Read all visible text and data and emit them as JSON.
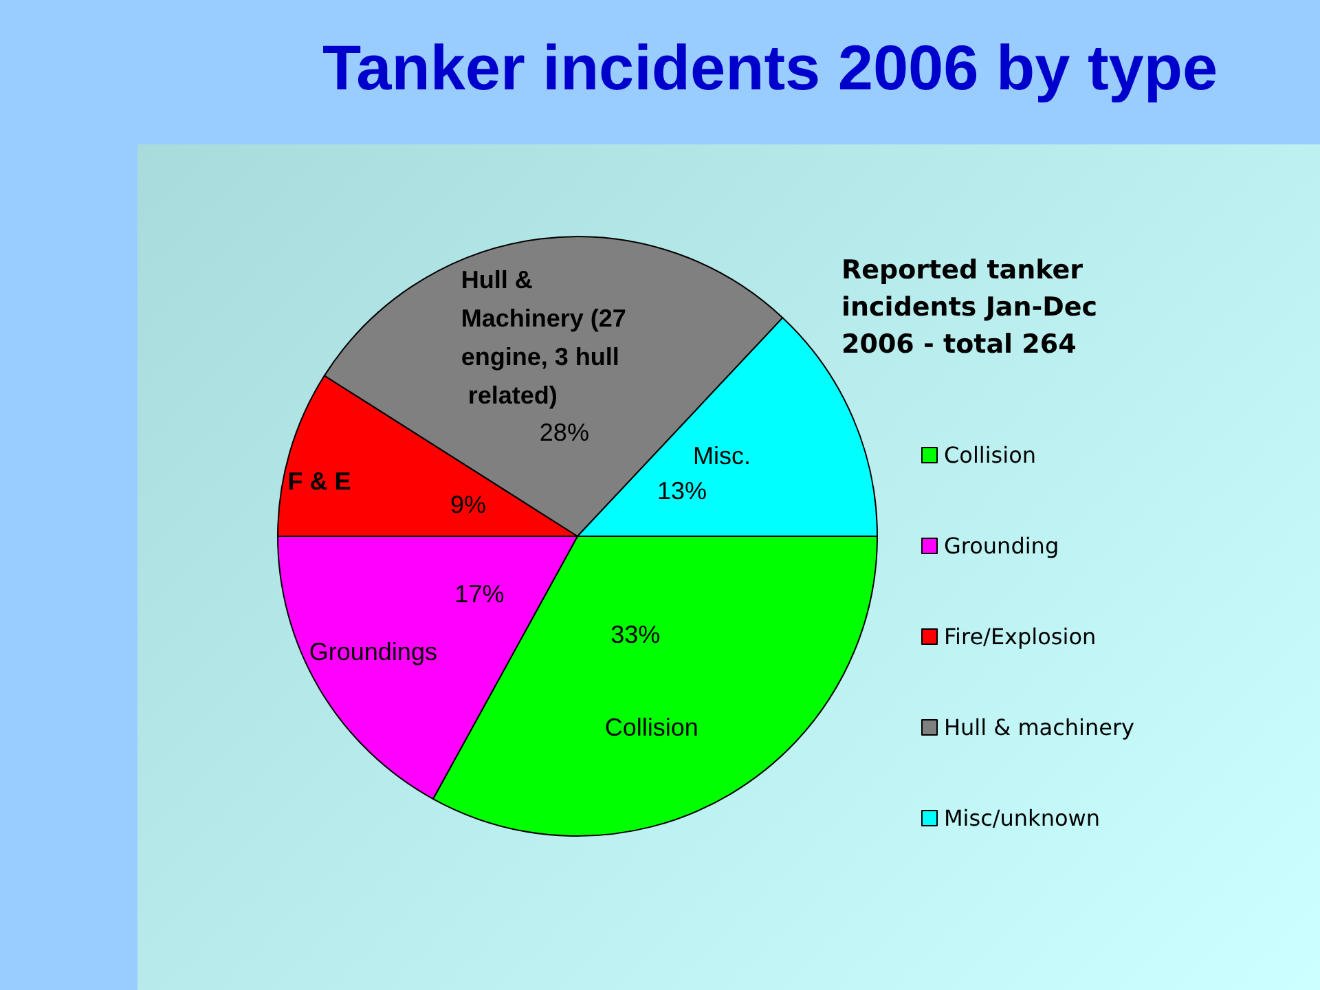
{
  "chart_data": {
    "type": "pie",
    "title": "Tanker incidents 2006 by type",
    "legend_title": "Reported tanker incidents Jan-Dec 2006 - total 264",
    "categories": [
      "Collision",
      "Grounding",
      "Fire/Explosion",
      "Hull & machinery",
      "Misc/unknown"
    ],
    "values": [
      33,
      17,
      9,
      28,
      13
    ],
    "value_labels": [
      "33%",
      "17%",
      "9%",
      "28%",
      "13%"
    ],
    "colors": [
      "#00ff00",
      "#ff00ff",
      "#ff0000",
      "#808080",
      "#00ffff"
    ],
    "annotations": [
      "Collision",
      "Groundings",
      "F & E",
      "Hull & Machinery (27 engine, 3 hull related)",
      "Misc."
    ],
    "legend": "right"
  }
}
